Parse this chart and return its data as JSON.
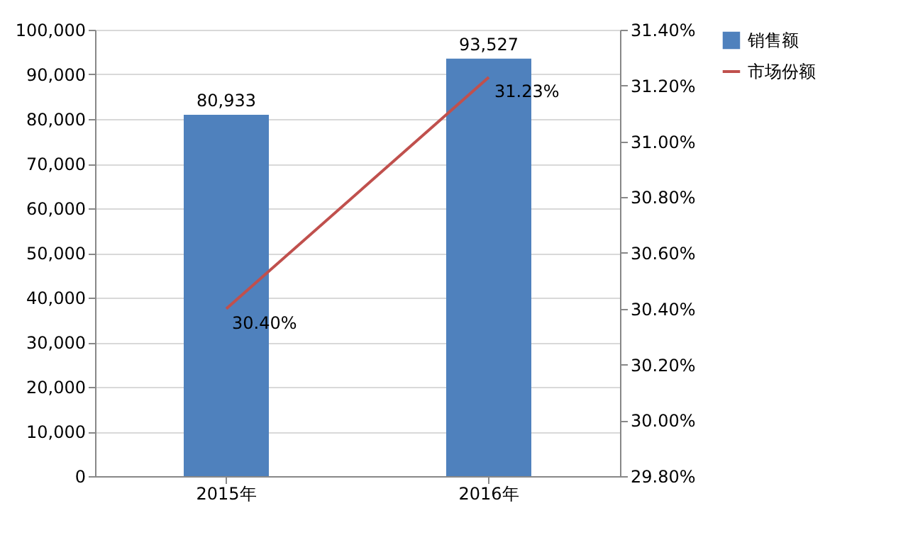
{
  "chart_data": {
    "type": "bar",
    "categories": [
      "2015年",
      "2016年"
    ],
    "series": [
      {
        "name": "销售额",
        "color": "#4f81bd",
        "values": [
          80933,
          93527
        ],
        "value_labels": [
          "80,933",
          "93,527"
        ]
      },
      {
        "name": "市场份额",
        "type": "line",
        "axis": "y2",
        "color": "#c0504d",
        "values": [
          30.4,
          31.23
        ],
        "value_labels": [
          "30.40%",
          "31.23%"
        ]
      }
    ],
    "ylim": [
      0,
      100000
    ],
    "yticks": [
      {
        "value": 0,
        "label": "0"
      },
      {
        "value": 10000,
        "label": "10,000"
      },
      {
        "value": 20000,
        "label": "20,000"
      },
      {
        "value": 30000,
        "label": "30,000"
      },
      {
        "value": 40000,
        "label": "40,000"
      },
      {
        "value": 50000,
        "label": "50,000"
      },
      {
        "value": 60000,
        "label": "60,000"
      },
      {
        "value": 70000,
        "label": "70,000"
      },
      {
        "value": 80000,
        "label": "80,000"
      },
      {
        "value": 90000,
        "label": "90,000"
      },
      {
        "value": 100000,
        "label": "100,000"
      }
    ],
    "y2lim": [
      29.8,
      31.4
    ],
    "y2ticks": [
      {
        "value": 29.8,
        "label": "29.80%"
      },
      {
        "value": 30.0,
        "label": "30.00%"
      },
      {
        "value": 30.2,
        "label": "30.20%"
      },
      {
        "value": 30.4,
        "label": "30.40%"
      },
      {
        "value": 30.6,
        "label": "30.60%"
      },
      {
        "value": 30.8,
        "label": "30.80%"
      },
      {
        "value": 31.0,
        "label": "31.00%"
      },
      {
        "value": 31.2,
        "label": "31.20%"
      },
      {
        "value": 31.4,
        "label": "31.40%"
      }
    ],
    "grid": "y",
    "legend": "right"
  }
}
